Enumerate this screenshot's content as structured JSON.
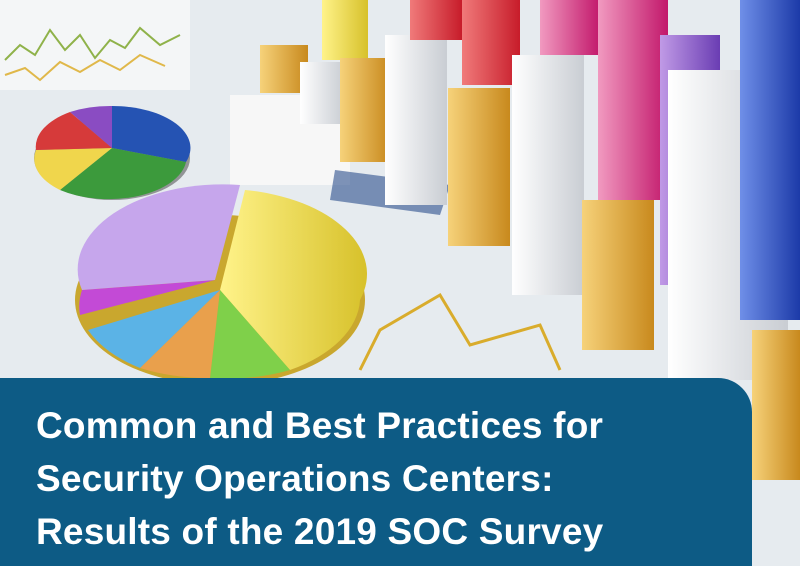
{
  "title_lines": [
    "Common and Best Practices for",
    "Security Operations Centers:",
    "Results of the 2019 SOC Survey"
  ]
}
